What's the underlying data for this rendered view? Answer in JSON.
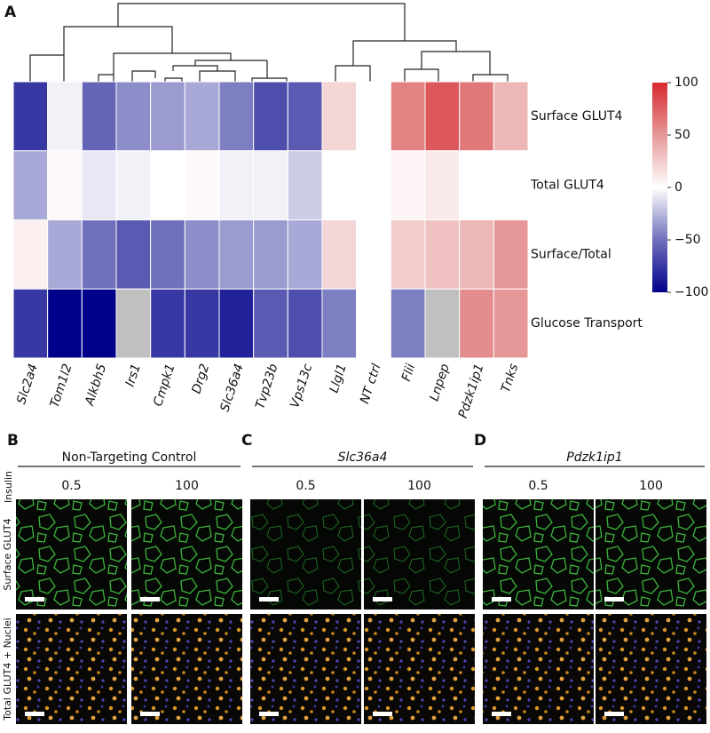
{
  "chart_data": {
    "type": "heatmap",
    "panel_label": "A",
    "columns": [
      "Slc2a4",
      "Tom1l2",
      "Alkbh5",
      "Irs1",
      "Cmpk1",
      "Drg2",
      "Slc36a4",
      "Tvp23b",
      "Vps13c",
      "Llgl1",
      "NT ctrl",
      "Flii",
      "Lnpep",
      "Pdzk1ip1",
      "Tnks"
    ],
    "rows": [
      "Surface GLUT4",
      "Total GLUT4",
      "Surface/Total",
      "Glucose Transport"
    ],
    "values": [
      [
        -75,
        -5,
        -55,
        -40,
        -35,
        -30,
        -45,
        -65,
        -60,
        20,
        0,
        60,
        80,
        65,
        35
      ],
      [
        -30,
        3,
        -8,
        -5,
        0,
        3,
        -5,
        -5,
        -18,
        0,
        0,
        5,
        10,
        0,
        0
      ],
      [
        8,
        -30,
        -50,
        -60,
        -50,
        -40,
        -35,
        -35,
        -30,
        20,
        0,
        25,
        30,
        35,
        50
      ],
      [
        -75,
        -100,
        -100,
        null,
        -75,
        -75,
        -85,
        -60,
        -65,
        -45,
        0,
        -45,
        null,
        55,
        50
      ]
    ],
    "clim": [
      -100,
      100
    ],
    "cticks": [
      100,
      50,
      0,
      {
        "value": -50,
        "label": "−50"
      },
      {
        "value": -100,
        "label": "−100"
      }
    ],
    "colormap": [
      "#00008b",
      "#7070bc",
      "#ffffff",
      "#e69898",
      "#d62a30"
    ],
    "missing_color": "#c0c0c0"
  },
  "panels": {
    "insulin_label": "Insulin",
    "row_labels": [
      "Surface GLUT4",
      "Total GLUT4 + Nuclei"
    ],
    "items": [
      {
        "letter": "B",
        "title": "Non-Targeting Control",
        "italic": false,
        "doses": [
          "0.5",
          "100"
        ]
      },
      {
        "letter": "C",
        "title": "Slc36a4",
        "italic": true,
        "doses": [
          "0.5",
          "100"
        ]
      },
      {
        "letter": "D",
        "title": "Pdzk1ip1",
        "italic": true,
        "doses": [
          "0.5",
          "100"
        ]
      }
    ]
  }
}
